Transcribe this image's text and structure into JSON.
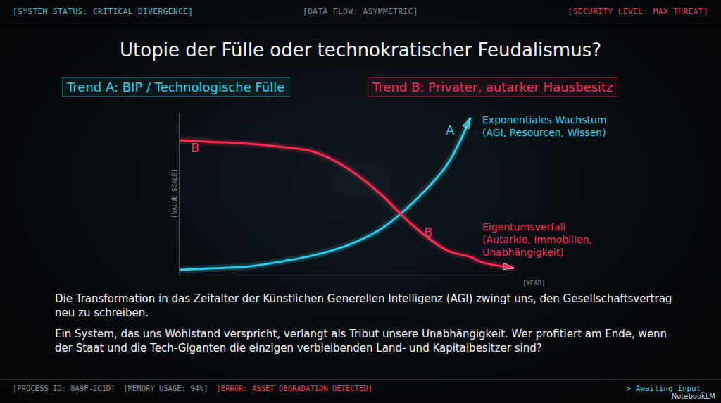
{
  "header": {
    "left": "[SYSTEM STATUS: CRITICAL DIVERGENCE]",
    "center": "[DATA FLOW: ASYMMETRIC]",
    "right": "[SECURITY LEVEL: MAX THREAT]"
  },
  "title": "Utopie der Fülle oder technokratischer Feudalismus?",
  "chart_data": {
    "type": "line",
    "x_label": "[YEAR]",
    "y_label": "[VALUE SCALE]",
    "x": [
      0,
      1,
      2,
      3,
      4,
      5,
      6,
      7,
      8,
      8.7,
      9,
      10
    ],
    "series": [
      {
        "name": "Trend A: BIP / Technologische Fülle",
        "color": "#22d3ee",
        "marker": "arrow",
        "label": "A",
        "annotation": [
          "Exponentiales Wachstum",
          "(AGI, Resourcen, Wissen)"
        ],
        "values": [
          3,
          4,
          5,
          8,
          12,
          18,
          28,
          45,
          68,
          97,
          null,
          null
        ]
      },
      {
        "name": "Trend B: Privater, autarker Hausbesitz",
        "color": "#ff2a55",
        "marker": "arrow",
        "label": "B",
        "annotation": [
          "Eigentumsverfall",
          "(Autarkie, Immobilien,",
          "Unabhängigkeit)"
        ],
        "values": [
          83,
          82,
          81,
          79,
          76,
          66,
          50,
          30,
          15,
          11,
          8,
          4
        ]
      }
    ],
    "xlim": [
      0,
      10
    ],
    "ylim": [
      0,
      100
    ],
    "grid": false,
    "tick_labels": false
  },
  "body": [
    "Die Transformation in das Zeitalter der Künstlichen Generellen Intelligenz (AGI) zwingt uns, den Gesellschaftsvertrag neu zu schreiben.",
    "Ein System, das uns Wohlstand verspricht, verlangt als Tribut unsere Unabhängigkeit. Wer profitiert am Ende, wenn der Staat und die Tech-Giganten die einzigen verbleibenden Land- und Kapitalbesitzer sind?"
  ],
  "footer": {
    "items": [
      "[PROCESS ID: 8A9F-2C1D]",
      "[MEMORY USAGE: 94%]"
    ],
    "error": "[ERROR: ASSET DEGRADATION DETECTED]",
    "prompt": "> Awaiting input_",
    "watermark": "NotebookLM"
  }
}
